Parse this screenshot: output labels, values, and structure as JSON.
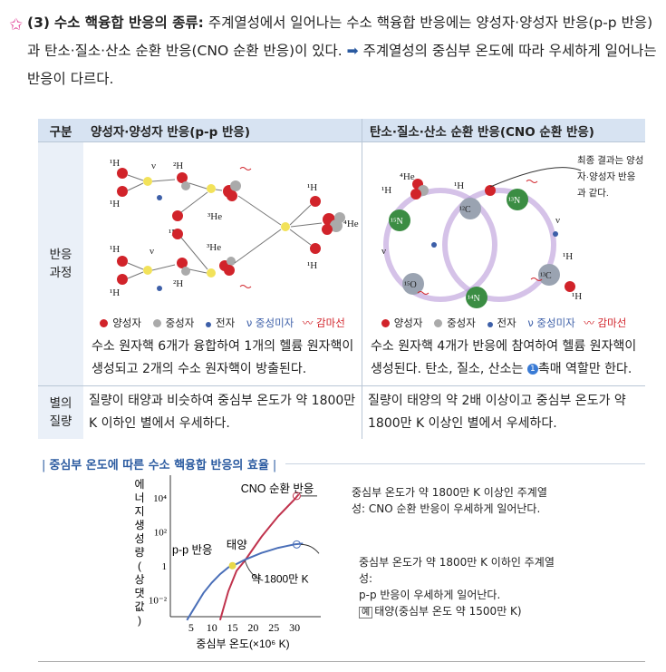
{
  "intro": {
    "number": "(3)",
    "heading": "수소 핵융합 반응의 종류:",
    "text1": " 주계열성에서 일어나는 수소 핵융합 반응에는 양성자·양성자 반응(p-p 반응)과 탄소·질소·산소 순환 반응(CNO 순환 반응)이 있다.",
    "arrow": " ➡ ",
    "text2": "주계열성의 중심부 온도에 따라 우세하게 일어나는 반응이 다르다."
  },
  "table": {
    "col0": "구분",
    "col1": "양성자·양성자 반응(p-p 반응)",
    "col2": "탄소·질소·산소 순환 반응(CNO 순환 반응)",
    "row1_header": "반응 과정",
    "row2_header": "별의 질량",
    "pp_desc": "수소 원자핵 6개가 융합하여 1개의 헬륨 원자핵이 생성되고 2개의 수소 원자핵이 방출된다.",
    "cno_desc_a": "수소 원자핵 4개가 반응에 참여하여 헬륨 원자핵이 생성된다. 탄소, 질소, 산소는 ",
    "cno_badge": "1",
    "cno_desc_b": "촉매 역할만 한다.",
    "pp_mass": "질량이 태양과 비슷하여 중심부 온도가 약 1800만 K 이하인 별에서 우세하다.",
    "cno_mass": "질량이 태양의 약 2배 이상이고 중심부 온도가 약 1800만 K 이상인 별에서 우세하다.",
    "cno_note": "최종 결과는 양성자·양성자 반응과 같다.",
    "legend": [
      "양성자",
      "중성자",
      "전자",
      "ν 중성미자",
      "〰 감마선"
    ],
    "labels": {
      "H1": "¹H",
      "H2": "²H",
      "He3": "³He",
      "He4": "⁴He",
      "C12": "¹²C",
      "C13": "¹³C",
      "N13": "¹³N",
      "N14": "¹⁴N",
      "N15": "¹⁵N",
      "O15": "¹⁵O",
      "nu": "ν"
    }
  },
  "section_title": "중심부 온도에 따른 수소 핵융합 반응의 효율",
  "chart_data": {
    "type": "line",
    "ylabel": "에너지 생성량 (상댓값)",
    "xlabel": "중심부 온도(×10⁶ K)",
    "x_ticks": [
      "5",
      "10",
      "15",
      "20",
      "25",
      "30"
    ],
    "y_ticks": [
      "10⁴",
      "10²",
      "1",
      "10⁻²"
    ],
    "xlim": [
      0,
      35
    ],
    "ylim_log10": [
      -3,
      5
    ],
    "log_y": true,
    "series": [
      {
        "name": "CNO 순환 반응",
        "color": "#c0334d",
        "x": [
          12,
          14,
          16,
          18,
          20,
          22,
          24,
          26,
          28,
          30,
          31
        ],
        "log10y": [
          -3.2,
          -1.5,
          -0.3,
          0.3,
          1.0,
          1.7,
          2.3,
          2.9,
          3.4,
          3.9,
          4.2
        ]
      },
      {
        "name": "p-p 반응",
        "color": "#4a6fb8",
        "x": [
          4,
          6,
          8,
          10,
          12,
          14,
          15,
          16,
          18,
          20,
          22,
          24,
          26,
          28,
          30,
          32
        ],
        "log10y": [
          -3.2,
          -2.4,
          -1.6,
          -1.0,
          -0.5,
          -0.1,
          0.0,
          0.1,
          0.35,
          0.55,
          0.75,
          0.9,
          1.05,
          1.15,
          1.25,
          1.3
        ]
      }
    ],
    "annotations": {
      "sun": "태양",
      "temp": "약 1800만 K",
      "cno_note": "중심부 온도가 약 1800만 K 이상인 주계열성: CNO 순환 반응이 우세하게 일어난다.",
      "pp_note_a": "중심부 온도가 약 1800만 K 이하인 주계열성:",
      "pp_note_b": "p-p 반응이 우세하게 일어난다.",
      "pp_example_tag": "예",
      "pp_example": "태양(중심부 온도 약 1500만 K)"
    }
  }
}
